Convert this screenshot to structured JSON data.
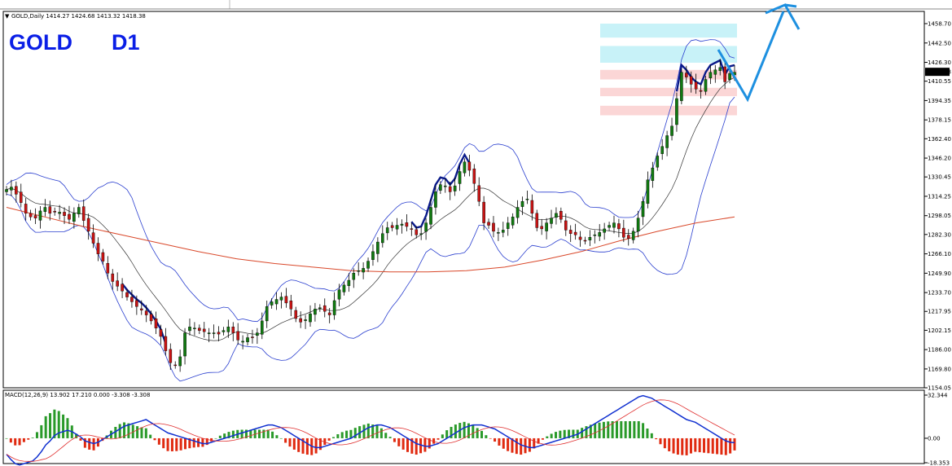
{
  "header": {
    "symbol_line": "GOLD,Daily  1414.27 1424.68 1413.32 1418.38",
    "title_symbol": "GOLD",
    "title_timeframe": "D1",
    "price_marker": "1418.38"
  },
  "macd_header": "MACD(12,26,9) 13.902 17.210 0.000 -3.308 -3.308",
  "colors": {
    "bull_candle": "#117a11",
    "bear_candle": "#c81414",
    "bollinger": "#2a3fcf",
    "ma_long": "#d9482a",
    "ma_mid": "#333333",
    "trend": "#0a1a8a",
    "arrow": "#1e90e0",
    "zone_blue": "#c8f2f8",
    "zone_red": "#fbd6d6",
    "macd_pos": "#2a9a2a",
    "macd_neg": "#e02a10",
    "macd_line": "#1030d0",
    "signal_line": "#e03030"
  },
  "chart_data": [
    {
      "type": "line",
      "title": "GOLD D1",
      "price_ticks": [
        "1458.70",
        "1442.50",
        "1426.30",
        "1410.55",
        "1394.35",
        "1378.15",
        "1362.40",
        "1346.20",
        "1330.45",
        "1314.25",
        "1298.05",
        "1282.30",
        "1266.10",
        "1249.90",
        "1233.70",
        "1217.95",
        "1202.15",
        "1186.00",
        "1169.80",
        "1154.05"
      ],
      "ylim": [
        1154.05,
        1458.7
      ],
      "close": [
        1320,
        1322,
        1316,
        1309,
        1300,
        1297,
        1296,
        1302,
        1305,
        1300,
        1301,
        1301,
        1298,
        1295,
        1300,
        1305,
        1294,
        1285,
        1275,
        1266,
        1260,
        1250,
        1243,
        1239,
        1235,
        1230,
        1226,
        1222,
        1219,
        1215,
        1210,
        1204,
        1197,
        1185,
        1175,
        1173,
        1180,
        1200,
        1205,
        1204,
        1202,
        1201,
        1200,
        1200,
        1199,
        1202,
        1205,
        1200,
        1194,
        1193,
        1196,
        1196,
        1200,
        1210,
        1222,
        1226,
        1228,
        1230,
        1225,
        1220,
        1212,
        1209,
        1211,
        1216,
        1220,
        1221,
        1218,
        1215,
        1227,
        1236,
        1240,
        1244,
        1250,
        1252,
        1254,
        1260,
        1268,
        1276,
        1283,
        1288,
        1288,
        1290,
        1291,
        1289,
        1287,
        1282,
        1283,
        1292,
        1305,
        1318,
        1324,
        1323,
        1318,
        1323,
        1335,
        1343,
        1336,
        1325,
        1310,
        1292,
        1290,
        1285,
        1284,
        1286,
        1292,
        1297,
        1305,
        1310,
        1312,
        1300,
        1288,
        1287,
        1292,
        1296,
        1300,
        1295,
        1286,
        1283,
        1282,
        1278,
        1277,
        1280,
        1282,
        1284,
        1287,
        1290,
        1292,
        1287,
        1280,
        1279,
        1285,
        1296,
        1310,
        1328,
        1338,
        1348,
        1356,
        1365,
        1373,
        1396,
        1418,
        1414,
        1408,
        1404,
        1402,
        1412,
        1418,
        1420,
        1422,
        1410,
        1417,
        1418
      ],
      "ma_long": [
        1305,
        1297,
        1289,
        1282,
        1275,
        1268,
        1262,
        1258,
        1255,
        1252,
        1251,
        1251,
        1252,
        1255,
        1261,
        1268,
        1277,
        1285,
        1292,
        1297
      ],
      "macd": [
        -12,
        -16,
        -19,
        -20,
        -19,
        -18,
        -17,
        -14,
        -10,
        -5,
        -2,
        2,
        4,
        5,
        6,
        5,
        3,
        1,
        -2,
        -3,
        -4,
        -3,
        -1,
        1,
        3,
        5,
        7,
        9,
        10,
        11,
        12,
        13,
        14,
        12,
        10,
        8,
        6,
        4,
        3,
        2,
        1,
        0,
        -1,
        -2,
        -3,
        -4,
        -4,
        -3,
        -2,
        -1,
        0,
        1,
        2,
        3,
        4,
        5,
        6,
        7,
        8,
        9,
        10,
        10,
        9,
        8,
        6,
        4,
        2,
        0,
        -2,
        -4,
        -6,
        -7,
        -7,
        -6,
        -5,
        -4,
        -3,
        -2,
        -1,
        0,
        2,
        4,
        6,
        8,
        9,
        10,
        10,
        9,
        8,
        6,
        4,
        2,
        0,
        -2,
        -4,
        -5,
        -6,
        -6,
        -5,
        -4,
        -2,
        0,
        2,
        4,
        6,
        8,
        9,
        10,
        10,
        10,
        9,
        8,
        7,
        5,
        3,
        1,
        -1,
        -3,
        -5,
        -6,
        -7,
        -7,
        -6,
        -5,
        -4,
        -3,
        -2,
        -1,
        0,
        1,
        2,
        3,
        5,
        7,
        9,
        11,
        13,
        15,
        17,
        19,
        21,
        23,
        25,
        27,
        29,
        31,
        32,
        31,
        30,
        28,
        26,
        24,
        22,
        20,
        18,
        16,
        14,
        13,
        12,
        10,
        8,
        6,
        4,
        2,
        0,
        -2,
        -3,
        -3.3
      ],
      "macd_ticks": [
        "32.344",
        "0.00",
        "-18.353"
      ]
    }
  ]
}
